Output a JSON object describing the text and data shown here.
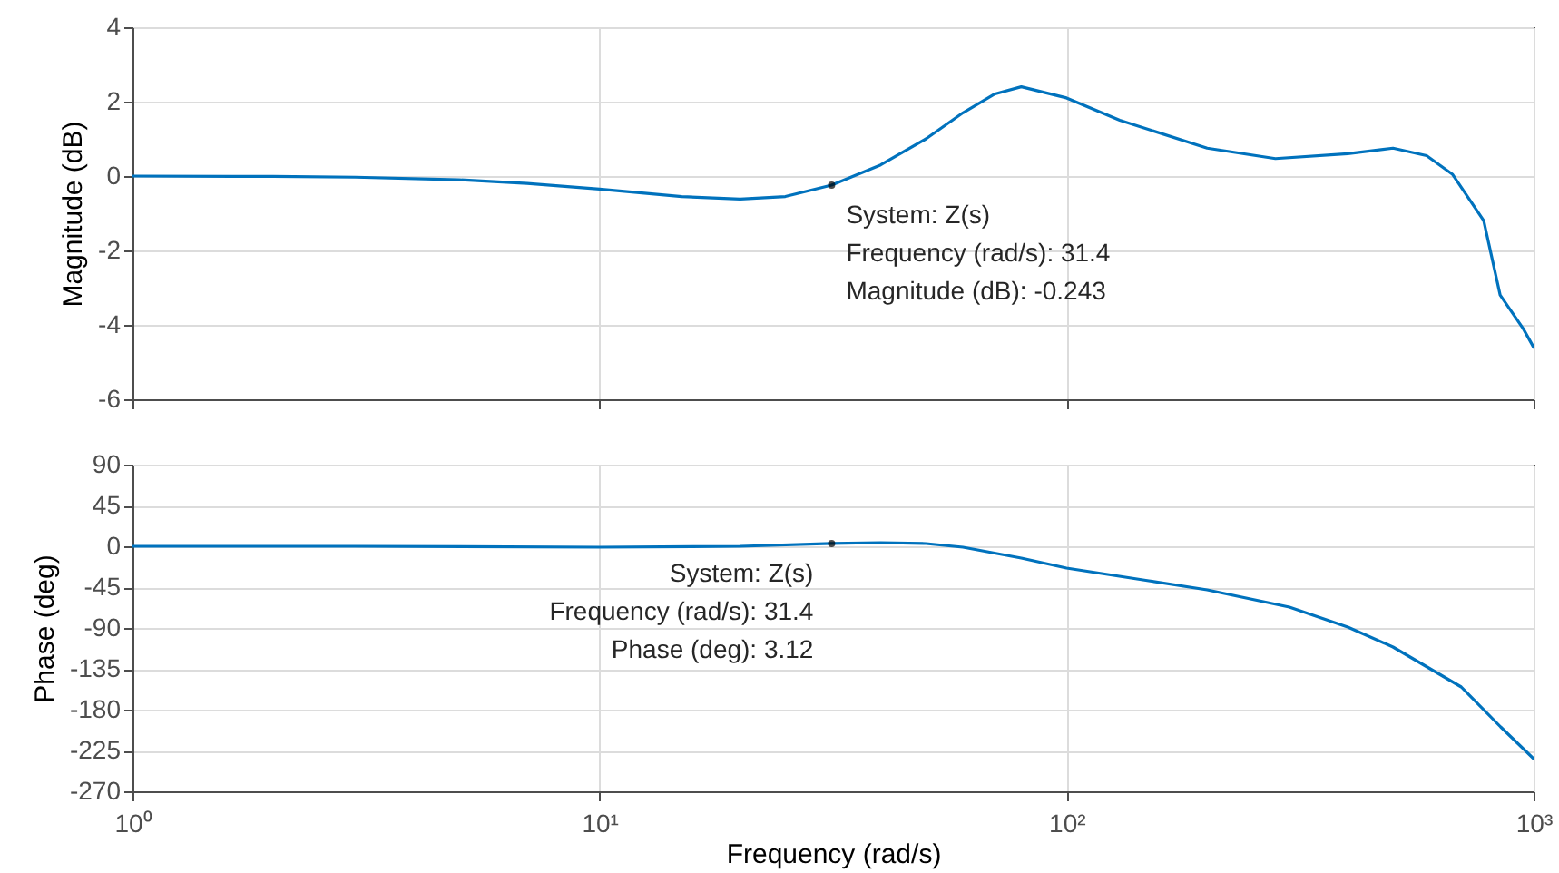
{
  "chart_data": [
    {
      "type": "line",
      "ylabel": "Magnitude (dB)",
      "log": "x",
      "grid": true,
      "tick_labels": "y",
      "xlim": [
        1,
        1000
      ],
      "xticks": [
        1,
        10,
        100,
        1000
      ],
      "ylim": [
        -6,
        4
      ],
      "yticks": [
        -6,
        -4,
        -2,
        0,
        2,
        4
      ],
      "x": [
        1,
        2,
        3,
        5,
        7,
        10,
        15,
        20,
        25,
        31.4,
        40,
        50,
        60,
        70,
        80,
        100,
        130,
        200,
        280,
        400,
        500,
        590,
        670,
        782,
        848,
        950,
        1000
      ],
      "series": [
        {
          "color": "#0072bd",
          "values": [
            0,
            -0.01,
            -0.03,
            -0.1,
            -0.2,
            -0.35,
            -0.55,
            -0.62,
            -0.55,
            -0.243,
            0.3,
            1.0,
            1.7,
            2.2,
            2.4,
            2.1,
            1.5,
            0.75,
            0.47,
            0.6,
            0.75,
            0.55,
            0.05,
            -1.2,
            -3.2,
            -4.1,
            -4.6
          ]
        }
      ],
      "annotations": [
        {
          "text": "System: Z(s)\nFrequency (rad/s): 31.4\nMagnitude (dB): -0.243",
          "x": 31.4,
          "y": -0.243
        }
      ]
    },
    {
      "type": "line",
      "xlabel": "Frequency  (rad/s)",
      "ylabel": "Phase (deg)",
      "log": "x",
      "grid": true,
      "xlim": [
        1,
        1000
      ],
      "xticks": [
        {
          "value": 1,
          "label": "10⁰"
        },
        {
          "value": 10,
          "label": "10¹"
        },
        {
          "value": 100,
          "label": "10²"
        },
        {
          "value": 1000,
          "label": "10³"
        }
      ],
      "ylim": [
        -270,
        90
      ],
      "yticks": [
        -270,
        -225,
        -180,
        -135,
        -90,
        -45,
        0,
        45,
        90
      ],
      "x": [
        1,
        3,
        10,
        20,
        31.4,
        40,
        50,
        60,
        80,
        100,
        150,
        200,
        300,
        400,
        500,
        700,
        850,
        1000
      ],
      "series": [
        {
          "color": "#0072bd",
          "values": [
            0,
            0,
            -1,
            0,
            3.12,
            4,
            3,
            -1,
            -13,
            -24,
            -38,
            -48,
            -67,
            -89,
            -111,
            -155,
            -199,
            -234
          ]
        }
      ],
      "annotations": [
        {
          "text": "System: Z(s)\nFrequency (rad/s): 31.4\nPhase (deg): 3.12",
          "x": 31.4,
          "y": 3.12
        }
      ]
    }
  ]
}
